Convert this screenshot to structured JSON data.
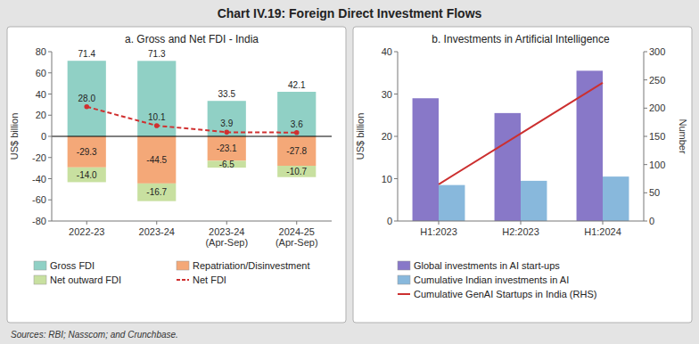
{
  "title": "Chart IV.19: Foreign Direct Investment Flows",
  "annotations": [
    "Sources: RBI; Nasscom; and Crunchbase."
  ],
  "chart_data": [
    {
      "type": "bar",
      "title": "a. Gross and Net FDI - India",
      "categories": [
        "2022-23",
        "2023-24",
        "2023-24\n(Apr-Sep)",
        "2024-25\n(Apr-Sep)"
      ],
      "ylabel": "US$ billion",
      "ylim": [
        -80,
        80
      ],
      "yticks": [
        -80,
        -60,
        -40,
        -20,
        0,
        20,
        40,
        60,
        80
      ],
      "stacked": true,
      "data_labels": true,
      "legend": "bottom",
      "grid": false,
      "series": [
        {
          "name": "Gross FDI",
          "color": "#90d0c5",
          "values": [
            71.4,
            71.3,
            33.5,
            42.1
          ]
        },
        {
          "name": "Repatriation/Disinvestment",
          "color": "#f4a878",
          "values": [
            -29.3,
            -44.5,
            -23.1,
            -27.8
          ]
        },
        {
          "name": "Net outward FDI",
          "color": "#c8e0a0",
          "values": [
            -14.0,
            -16.7,
            -6.5,
            -10.7
          ],
          "value_labels": [
            "-14.0",
            "-16.7",
            "-6.5",
            "-10.7"
          ]
        },
        {
          "name": "Net FDI",
          "type": "line",
          "color": "#d03030",
          "line_style": "dashed",
          "marker": "circle",
          "values": [
            28.0,
            10.1,
            3.9,
            3.6
          ],
          "value_labels": [
            "28.0",
            "10.1",
            "3.9",
            "3.6"
          ]
        }
      ]
    },
    {
      "type": "bar",
      "title": "b. Investments in Artificial Intelligence",
      "categories": [
        "H1:2023",
        "H2:2023",
        "H1:2024"
      ],
      "ylabel": "US$ billion",
      "y2label": "Number",
      "ylim": [
        0,
        40
      ],
      "yticks": [
        0,
        10,
        20,
        30,
        40
      ],
      "y2lim": [
        0,
        300
      ],
      "y2ticks": [
        0,
        50,
        100,
        150,
        200,
        250,
        300
      ],
      "legend": "bottom",
      "grid": false,
      "series": [
        {
          "name": "Global investments in AI start-ups",
          "color": "#8878c8",
          "values": [
            29.0,
            25.5,
            35.5
          ]
        },
        {
          "name": "Cumulative Indian investments in AI",
          "color": "#88b8dc",
          "values": [
            8.5,
            9.5,
            10.5
          ]
        },
        {
          "name": "Cumulative GenAI Startups in India (RHS)",
          "type": "line",
          "axis": "y2",
          "color": "#cc3030",
          "line_style": "solid",
          "values": [
            65,
            155,
            245
          ]
        }
      ]
    }
  ]
}
